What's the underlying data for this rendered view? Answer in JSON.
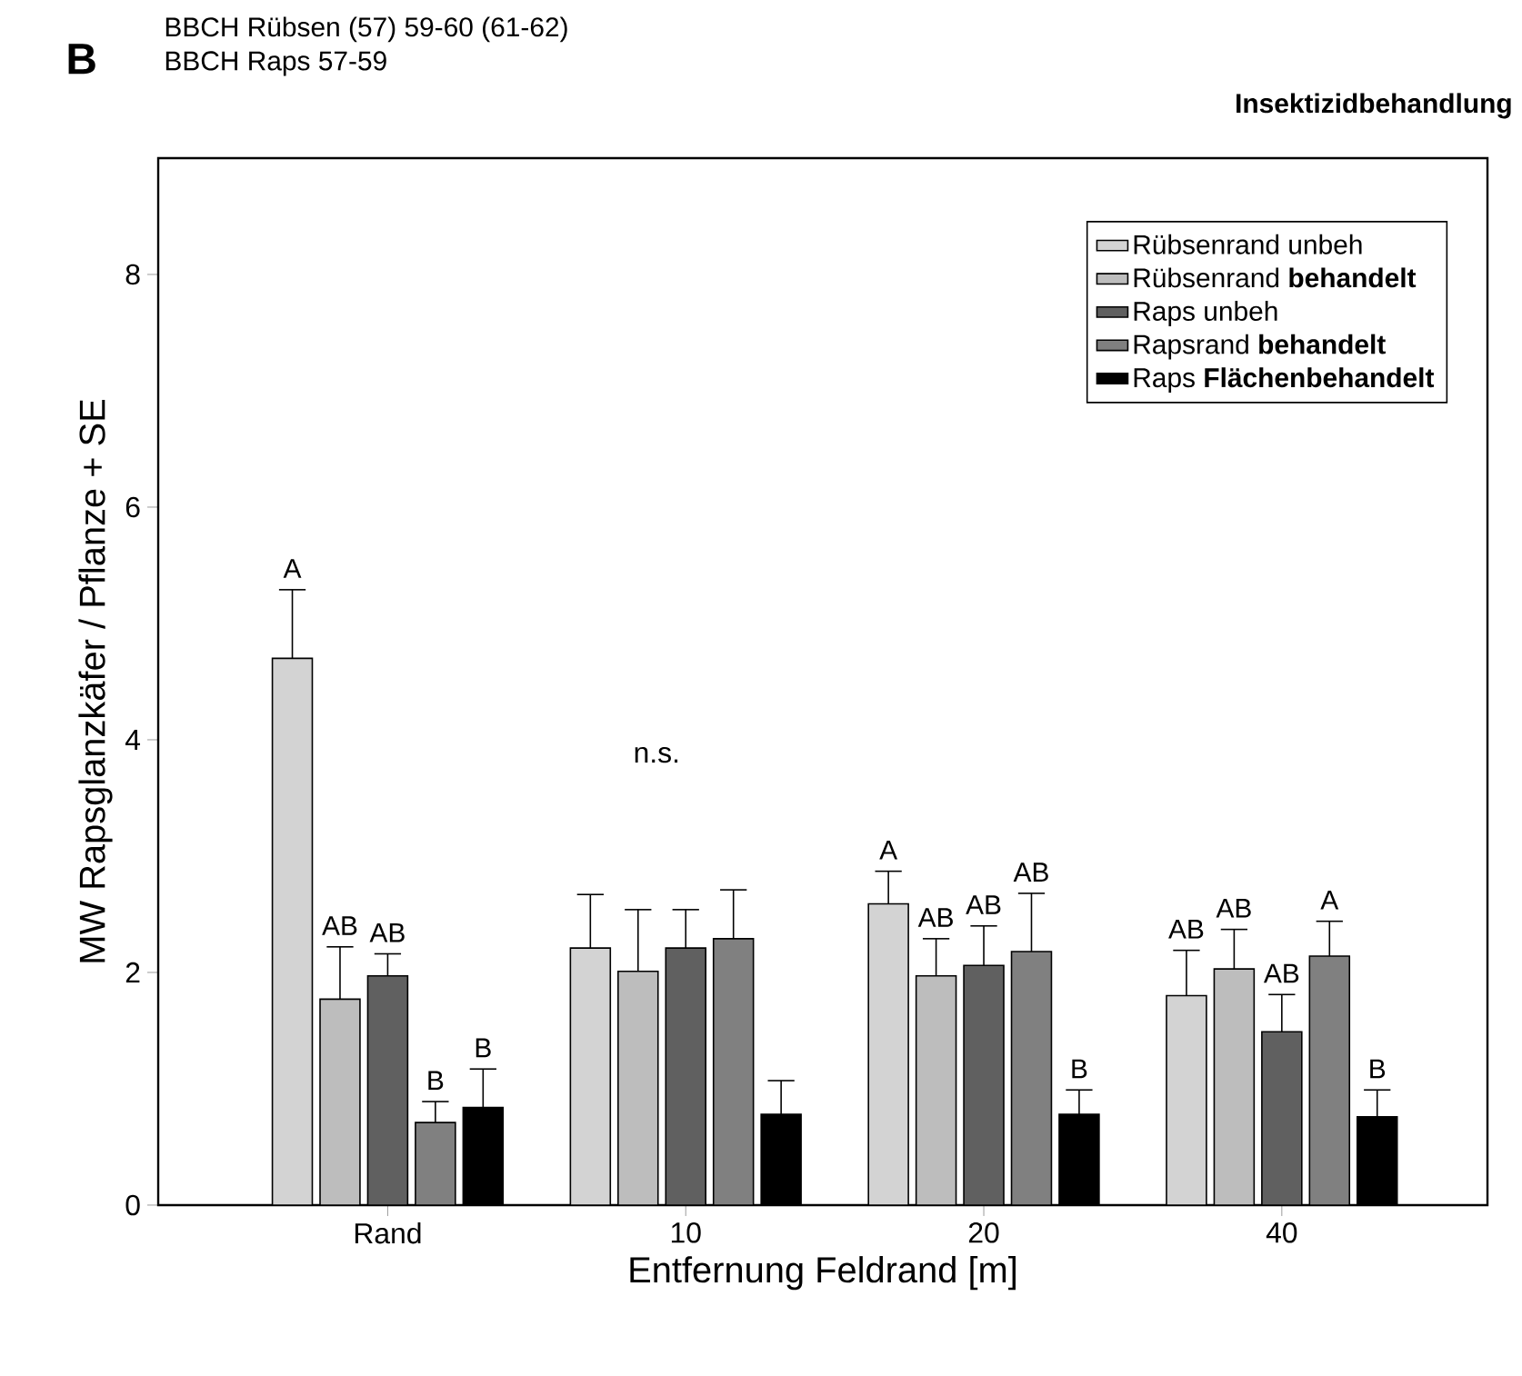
{
  "chart_data": {
    "type": "bar",
    "title": "Insektizidbehandlung",
    "xlabel": "Entfernung Feldrand [m]",
    "ylabel": "MW Rapsglanzkäfer / Pflanze + SE",
    "categories": [
      "Rand",
      "10",
      "20",
      "40"
    ],
    "series": [
      {
        "name": "Rübsenrand unbeh",
        "color": "#d3d3d3",
        "values": [
          4.7,
          2.21,
          2.59,
          1.8
        ],
        "errors": [
          [
            4.7,
            5.29
          ],
          [
            2.21,
            2.67
          ],
          [
            2.59,
            2.87
          ],
          [
            1.8,
            2.19
          ]
        ],
        "value_labels": [
          "A",
          null,
          "A",
          "AB"
        ]
      },
      {
        "name": "Rübsenrand **behandelt**",
        "color": "#bdbdbd",
        "values": [
          1.77,
          2.01,
          1.97,
          2.03
        ],
        "errors": [
          [
            1.77,
            2.22
          ],
          [
            2.01,
            2.54
          ],
          [
            1.97,
            2.29
          ],
          [
            2.03,
            2.37
          ]
        ],
        "value_labels": [
          "AB",
          null,
          "AB",
          "AB"
        ]
      },
      {
        "name": "Raps unbeh",
        "color": "#606060",
        "values": [
          1.97,
          2.21,
          2.06,
          1.49
        ],
        "errors": [
          [
            1.97,
            2.16
          ],
          [
            2.21,
            2.54
          ],
          [
            2.06,
            2.4
          ],
          [
            1.49,
            1.81
          ]
        ],
        "value_labels": [
          "AB",
          null,
          "AB",
          "AB"
        ]
      },
      {
        "name": "Rapsrand **behandelt**",
        "color": "#808080",
        "values": [
          0.71,
          2.29,
          2.18,
          2.14
        ],
        "errors": [
          [
            0.71,
            0.89
          ],
          [
            2.29,
            2.71
          ],
          [
            2.18,
            2.68
          ],
          [
            2.14,
            2.44
          ]
        ],
        "value_labels": [
          "B",
          null,
          "AB",
          "A"
        ]
      },
      {
        "name": "Raps **Flächenbehandelt**",
        "color": "#000000",
        "values": [
          0.84,
          0.78,
          0.78,
          0.76
        ],
        "errors": [
          [
            0.84,
            1.17
          ],
          [
            0.78,
            1.07
          ],
          [
            0.78,
            0.99
          ],
          [
            0.76,
            0.99
          ]
        ],
        "value_labels": [
          "B",
          null,
          "B",
          "B"
        ]
      }
    ],
    "ylim": [
      0,
      9
    ],
    "yticks": [
      0,
      2,
      4,
      6,
      8
    ],
    "legend": "top right",
    "grid": false,
    "annotations": [
      "B",
      "BBCH Rübsen  (57) 59-60 (61-62)",
      "BBCH Raps 57-59",
      "n.s."
    ]
  }
}
